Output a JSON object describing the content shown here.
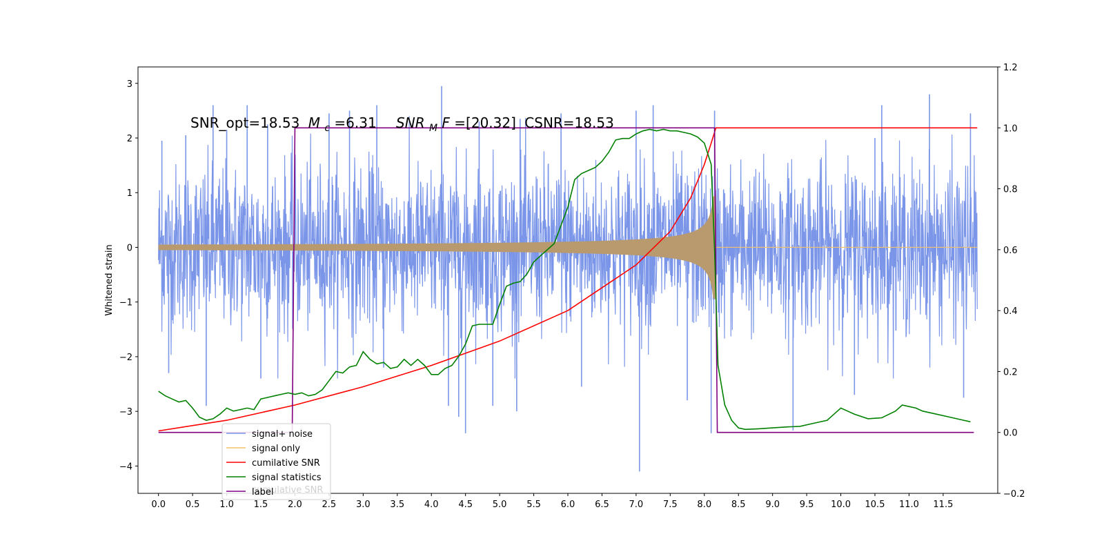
{
  "chart_data": {
    "type": "line",
    "ylabel": "Whitened strain",
    "annotation": {
      "snr_opt": "SNR_opt=18.53",
      "mc_var": "M",
      "mc_sub": "c",
      "mc_val": "=6.31",
      "snrmf_var": "SNR",
      "snrmf_sub": "M",
      "snrmf_var2": "F",
      "snrmf_val": "=[20.32]",
      "csnr": "CSNR=18.53"
    },
    "x_ticks": [
      "0.0",
      "0.5",
      "1.0",
      "1.5",
      "2.0",
      "2.5",
      "3.0",
      "3.5",
      "4.0",
      "4.5",
      "5.0",
      "5.5",
      "6.0",
      "6.5",
      "7.0",
      "7.5",
      "8.0",
      "8.5",
      "9.0",
      "9.5",
      "10.0",
      "10.5",
      "11.0",
      "11.5"
    ],
    "y_left_ticks": [
      "3",
      "2",
      "1",
      "0",
      "−1",
      "−2",
      "−3",
      "−4"
    ],
    "y_right_ticks": [
      "1.2",
      "1.0",
      "0.8",
      "0.6",
      "0.4",
      "0.2",
      "0.0",
      "−0.2"
    ],
    "xlim": [
      -0.3,
      12.3
    ],
    "ylim_left": [
      -4.5,
      3.3
    ],
    "ylim_right": [
      -0.2,
      1.2
    ],
    "noise_amplitude_std": 0.75,
    "signal_end_x": 8.17,
    "label_step_on_x": 1.98,
    "label_step_off_x": 8.17,
    "series": [
      {
        "name": "signal+ noise",
        "color": "#7b96e8",
        "axis": "left",
        "description_points": "noise ~ N(0,0.75) with spikes up to 2.95 and down to -4.1"
      },
      {
        "name": "signal only",
        "color": "#f5c06a",
        "axis": "left"
      },
      {
        "name": "cumilative SNR",
        "color": "#ff0000",
        "axis": "right",
        "x": [
          0.0,
          1.0,
          2.0,
          3.0,
          4.0,
          5.0,
          6.0,
          7.0,
          7.5,
          7.8,
          8.0,
          8.1,
          8.17,
          8.2,
          12.0
        ],
        "values": [
          0.005,
          0.04,
          0.09,
          0.15,
          0.22,
          0.3,
          0.4,
          0.55,
          0.66,
          0.77,
          0.88,
          0.95,
          1.0,
          1.0,
          1.0
        ]
      },
      {
        "name": "signal statistics",
        "color": "#008000",
        "axis": "right",
        "x": [
          0.0,
          0.1,
          0.2,
          0.3,
          0.4,
          0.5,
          0.6,
          0.7,
          0.8,
          0.9,
          1.0,
          1.1,
          1.2,
          1.3,
          1.4,
          1.5,
          1.6,
          1.7,
          1.8,
          1.9,
          2.0,
          2.1,
          2.2,
          2.3,
          2.4,
          2.5,
          2.6,
          2.7,
          2.8,
          2.9,
          3.0,
          3.1,
          3.2,
          3.3,
          3.4,
          3.5,
          3.6,
          3.7,
          3.8,
          3.9,
          4.0,
          4.1,
          4.2,
          4.3,
          4.4,
          4.5,
          4.6,
          4.7,
          4.8,
          4.9,
          5.0,
          5.1,
          5.2,
          5.3,
          5.4,
          5.5,
          5.6,
          5.7,
          5.8,
          5.9,
          6.0,
          6.1,
          6.2,
          6.3,
          6.4,
          6.5,
          6.6,
          6.7,
          6.8,
          6.9,
          7.0,
          7.1,
          7.2,
          7.3,
          7.4,
          7.5,
          7.6,
          7.7,
          7.8,
          7.9,
          8.0,
          8.1,
          8.15,
          8.2,
          8.3,
          8.4,
          8.5,
          8.6,
          8.8,
          9.0,
          9.2,
          9.4,
          9.6,
          9.8,
          9.9,
          10.0,
          10.2,
          10.4,
          10.6,
          10.8,
          10.9,
          11.0,
          11.1,
          11.2,
          11.4,
          11.6,
          11.8,
          11.9
        ],
        "values": [
          0.135,
          0.12,
          0.11,
          0.1,
          0.105,
          0.08,
          0.05,
          0.04,
          0.045,
          0.06,
          0.08,
          0.07,
          0.075,
          0.08,
          0.075,
          0.11,
          0.115,
          0.12,
          0.125,
          0.13,
          0.125,
          0.13,
          0.12,
          0.125,
          0.14,
          0.17,
          0.2,
          0.195,
          0.215,
          0.22,
          0.265,
          0.24,
          0.225,
          0.23,
          0.21,
          0.215,
          0.24,
          0.22,
          0.24,
          0.22,
          0.19,
          0.19,
          0.21,
          0.22,
          0.25,
          0.29,
          0.35,
          0.355,
          0.355,
          0.355,
          0.42,
          0.48,
          0.49,
          0.495,
          0.52,
          0.56,
          0.58,
          0.6,
          0.62,
          0.68,
          0.74,
          0.83,
          0.85,
          0.86,
          0.87,
          0.89,
          0.92,
          0.96,
          0.965,
          0.965,
          0.98,
          0.99,
          0.995,
          0.99,
          0.995,
          0.99,
          0.99,
          0.985,
          0.98,
          0.97,
          0.95,
          0.88,
          0.6,
          0.22,
          0.09,
          0.04,
          0.015,
          0.01,
          0.012,
          0.015,
          0.018,
          0.02,
          0.03,
          0.04,
          0.06,
          0.08,
          0.06,
          0.045,
          0.048,
          0.07,
          0.09,
          0.085,
          0.08,
          0.07,
          0.06,
          0.05,
          0.04,
          0.035
        ]
      },
      {
        "name": "label",
        "color": "#800080",
        "axis": "right"
      }
    ],
    "legend": {
      "placement": "lower-left",
      "shadow_text": "cumulative SNR",
      "entries": [
        "signal+ noise",
        "signal only",
        "cumilative SNR",
        "signal statistics",
        "label"
      ]
    }
  }
}
